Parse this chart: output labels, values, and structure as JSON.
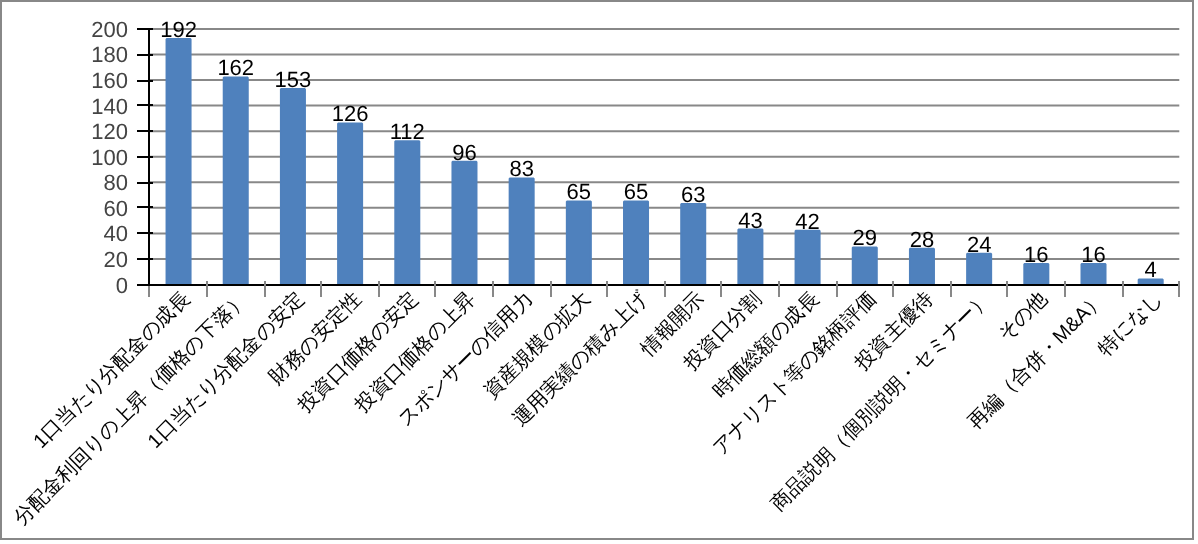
{
  "chart_data": {
    "type": "bar",
    "categories": [
      "1口当たり分配金の成長",
      "分配金利回りの上昇（価格の下落）",
      "1口当たり分配金の安定",
      "財務の安定性",
      "投資口価格の安定",
      "投資口価格の上昇",
      "スポンサーの信用力",
      "資産規模の拡大",
      "運用実績の積み上げ",
      "情報開示",
      "投資口分割",
      "時価総額の成長",
      "アナリスト等の銘柄評価",
      "投資主優待",
      "商品説明（個別説明・セミナー）",
      "その他",
      "再編（合併・M&A）",
      "特になし"
    ],
    "values": [
      192,
      162,
      153,
      126,
      112,
      96,
      83,
      65,
      65,
      63,
      43,
      42,
      29,
      28,
      24,
      16,
      16,
      4
    ],
    "color": "#4f81bd",
    "ylim": [
      0,
      200
    ],
    "yticks": [
      0,
      20,
      40,
      60,
      80,
      100,
      120,
      140,
      160,
      180,
      200
    ],
    "grid": "y",
    "data_labels": true
  }
}
